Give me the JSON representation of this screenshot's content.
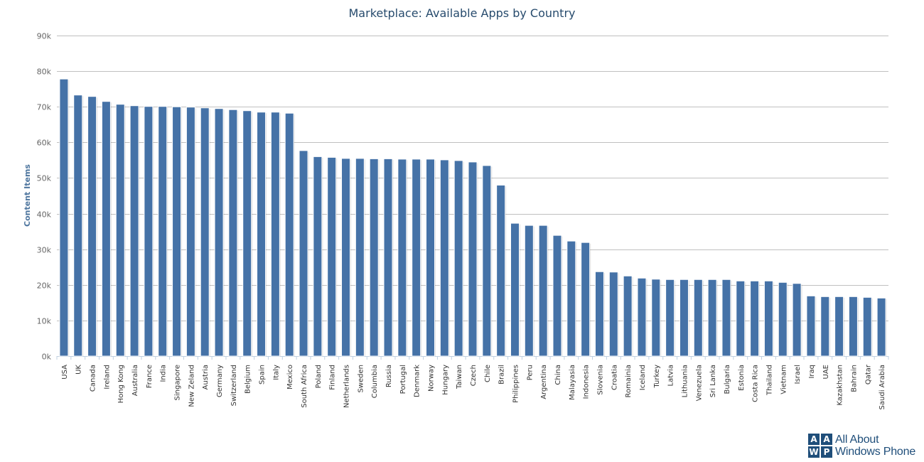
{
  "chart_data": {
    "type": "bar",
    "title": "Marketplace: Available Apps by Country",
    "ylabel": "Content Items",
    "xlabel": "",
    "ylim": [
      0,
      90000
    ],
    "yticks": [
      0,
      10000,
      20000,
      30000,
      40000,
      50000,
      60000,
      70000,
      80000,
      90000
    ],
    "ytick_labels": [
      "0k",
      "10k",
      "20k",
      "30k",
      "40k",
      "50k",
      "60k",
      "70k",
      "80k",
      "90k"
    ],
    "grid": true,
    "legend": false,
    "bar_color": "#4572a7",
    "categories": [
      "USA",
      "UK",
      "Canada",
      "Ireland",
      "Hong Kong",
      "Australia",
      "France",
      "India",
      "Singapore",
      "New Zeland",
      "Austria",
      "Germany",
      "Switzerland",
      "Belgium",
      "Spain",
      "Italy",
      "Mexico",
      "South Africa",
      "Poland",
      "Finland",
      "Netherlands",
      "Sweden",
      "Columbia",
      "Russia",
      "Portugal",
      "Denmark",
      "Norway",
      "Hungary",
      "Taiwan",
      "Czech",
      "Chile",
      "Brazil",
      "Philippines",
      "Peru",
      "Argentina",
      "China",
      "Malayasia",
      "Indonesia",
      "Slovenia",
      "Croatia",
      "Romainia",
      "Iceland",
      "Turkey",
      "Latvia",
      "Lithuania",
      "Venezuela",
      "Sri Lanka",
      "Bulgaria",
      "Estonia",
      "Costa Rica",
      "Thailand",
      "Vietnam",
      "Israel",
      "Iraq",
      "UAE",
      "Kazakhstan",
      "Bahrain",
      "Qatar",
      "Saudi Arabia"
    ],
    "values": [
      77800,
      73300,
      72900,
      71500,
      70700,
      70300,
      70100,
      70100,
      70000,
      69900,
      69700,
      69500,
      69200,
      68900,
      68500,
      68500,
      68200,
      57700,
      56000,
      55800,
      55500,
      55500,
      55400,
      55400,
      55300,
      55300,
      55300,
      55100,
      54900,
      54500,
      53500,
      48000,
      37300,
      36700,
      36700,
      33900,
      32300,
      31900,
      23700,
      23600,
      22500,
      21900,
      21600,
      21500,
      21500,
      21500,
      21500,
      21500,
      21100,
      21100,
      21100,
      20700,
      20400,
      16900,
      16700,
      16700,
      16700,
      16500,
      16300
    ]
  },
  "logo": {
    "grid_letters": [
      "A",
      "A",
      "W",
      "P"
    ],
    "line1": "All About",
    "line2": "Windows Phone",
    "color": "#1f4e7a"
  }
}
